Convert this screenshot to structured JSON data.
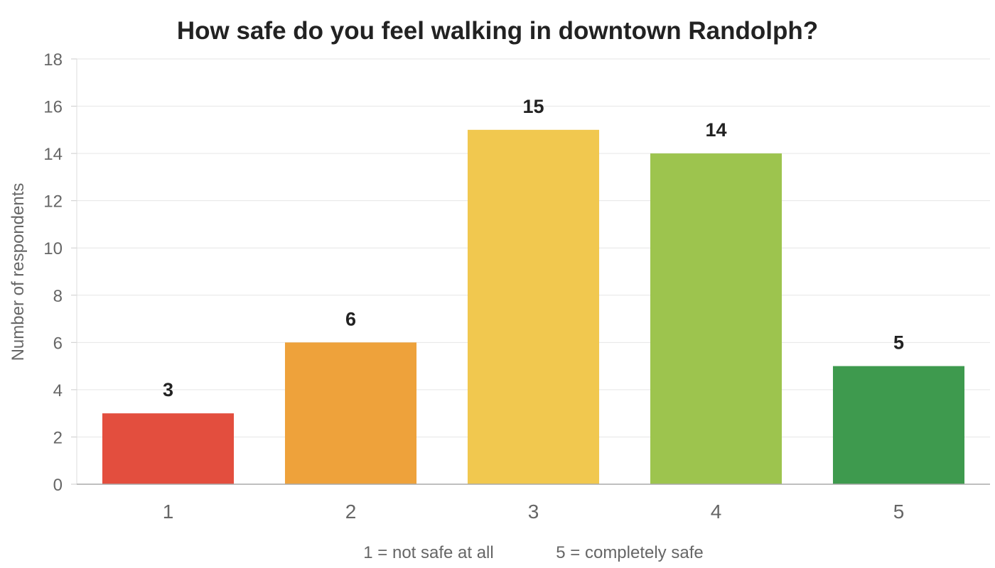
{
  "chart_data": {
    "type": "bar",
    "title": "How safe do you feel walking in downtown Randolph?",
    "xlabel": "",
    "ylabel": "Number of respondents",
    "categories": [
      "1",
      "2",
      "3",
      "4",
      "5"
    ],
    "values": [
      3,
      6,
      15,
      14,
      5
    ],
    "data_labels": [
      "3",
      "6",
      "15",
      "14",
      "5"
    ],
    "bar_colors": [
      "#e34e3e",
      "#eea23b",
      "#f1c84f",
      "#9dc44e",
      "#3e9a4e"
    ],
    "ylim": [
      0,
      18
    ],
    "y_ticks": [
      0,
      2,
      4,
      6,
      8,
      10,
      12,
      14,
      16,
      18
    ],
    "y_tick_labels": [
      "0",
      "2",
      "4",
      "6",
      "8",
      "10",
      "12",
      "14",
      "16",
      "18"
    ],
    "grid": true,
    "legend": "none",
    "scale_notes": [
      "1 = not safe at all",
      "5 = completely safe"
    ]
  }
}
